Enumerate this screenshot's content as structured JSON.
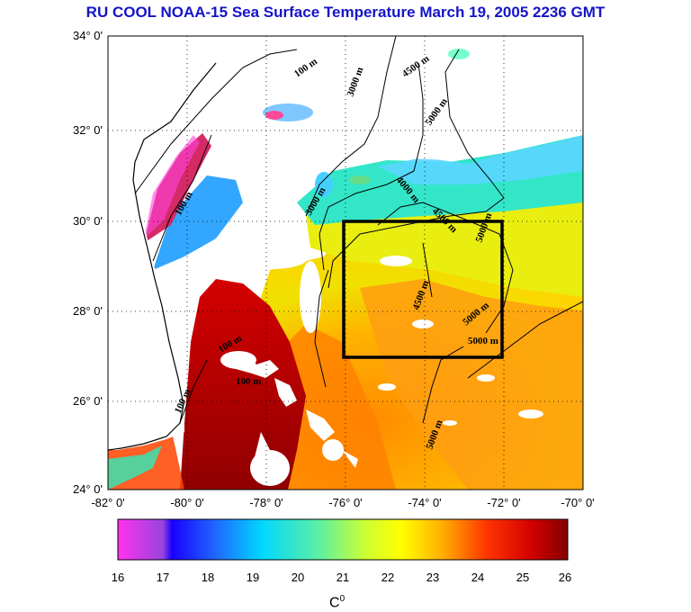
{
  "title": "RU COOL  NOAA-15 Sea Surface Temperature March 19, 2005 2236 GMT",
  "lat_labels": [
    "34° 0'",
    "32° 0'",
    "30° 0'",
    "28° 0'",
    "26° 0'",
    "24° 0'"
  ],
  "lon_labels": [
    "-82° 0'",
    "-80° 0'",
    "-78° 0'",
    "-76° 0'",
    "-74° 0'",
    "-72° 0'",
    "-70° 0'"
  ],
  "contour_labels": [
    "100 m",
    "3000 m",
    "4500 m",
    "5000 m",
    "100 m",
    "3000 m",
    "4000 m",
    "4500 m",
    "5000 m",
    "4500 m",
    "5000 m",
    "5000 m",
    "100 m",
    "100 m",
    "100 m",
    "5000 m"
  ],
  "colorbar": {
    "ticks": [
      "16",
      "17",
      "18",
      "19",
      "20",
      "21",
      "22",
      "23",
      "24",
      "25",
      "26"
    ],
    "unit": "C",
    "unit_sup": "0"
  },
  "colors": {
    "title": "#1414c8",
    "land": "#ffffff",
    "box": "#000000"
  }
}
